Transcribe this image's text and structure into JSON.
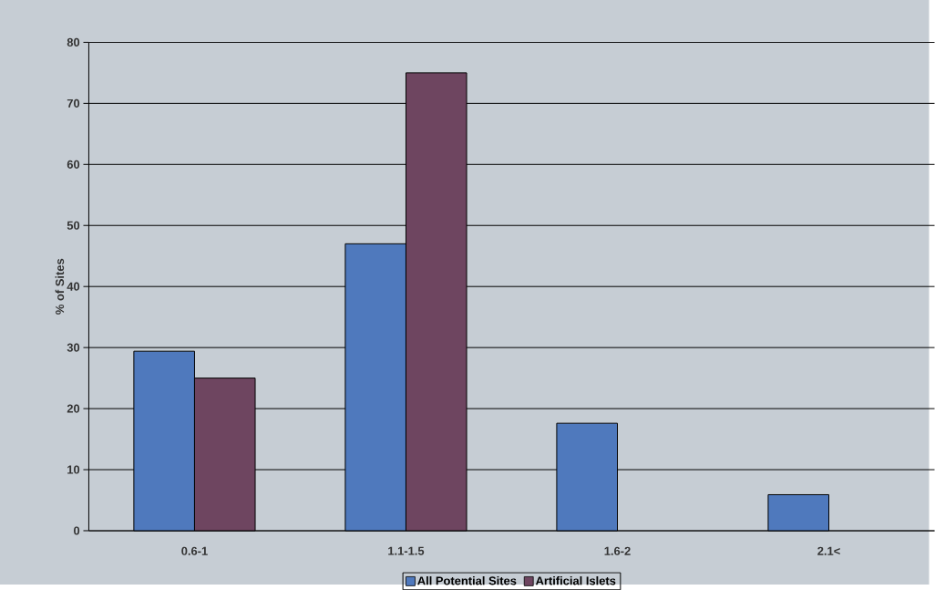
{
  "chart_data": {
    "type": "bar",
    "ylabel": "% of Sites",
    "categories": [
      "0.6-1",
      "1.1-1.5",
      "1.6-2",
      "2.1<"
    ],
    "series": [
      {
        "name": "All Potential Sites",
        "color": "#4f79bd",
        "values": [
          29.4,
          47,
          17.6,
          5.9
        ]
      },
      {
        "name": "Artificial Islets",
        "color": "#6e4560",
        "values": [
          25,
          75,
          null,
          null
        ]
      }
    ],
    "ylim": [
      0,
      80
    ],
    "yticks": [
      0,
      10,
      20,
      30,
      40,
      50,
      60,
      70,
      80
    ],
    "grid": "y",
    "legend": "bottom"
  }
}
